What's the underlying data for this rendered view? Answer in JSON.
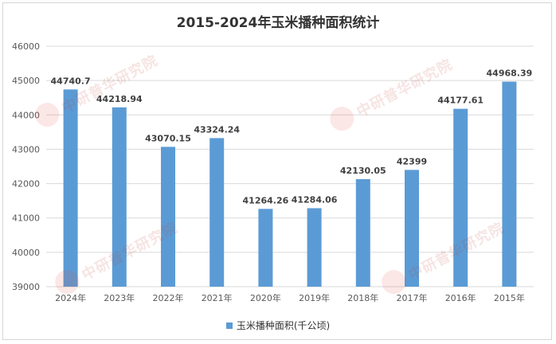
{
  "chart_data": {
    "type": "bar",
    "title": "2015-2024年玉米播种面积统计",
    "categories": [
      "2024年",
      "2023年",
      "2022年",
      "2021年",
      "2020年",
      "2019年",
      "2018年",
      "2017年",
      "2016年",
      "2015年"
    ],
    "series": [
      {
        "name": "玉米播种面积(千公顷)",
        "values": [
          44740.7,
          44218.94,
          43070.15,
          43324.24,
          41264.26,
          41284.06,
          42130.05,
          42399,
          44177.61,
          44968.39
        ],
        "labels": [
          "44740.7",
          "44218.94",
          "43070.15",
          "43324.24",
          "41264.26",
          "41284.06",
          "42130.05",
          "42399",
          "44177.61",
          "44968.39"
        ]
      }
    ],
    "ylim": [
      39000,
      46000
    ],
    "yticks": [
      "39000",
      "40000",
      "41000",
      "42000",
      "43000",
      "44000",
      "45000",
      "46000"
    ],
    "grid": true,
    "legend_position": "bottom",
    "colors": {
      "bar": "#5b9bd5",
      "grid": "#d9d9d9",
      "axis_text": "#595959"
    }
  },
  "watermark": {
    "text": "中研普华研究院",
    "logo": "CIRN"
  }
}
